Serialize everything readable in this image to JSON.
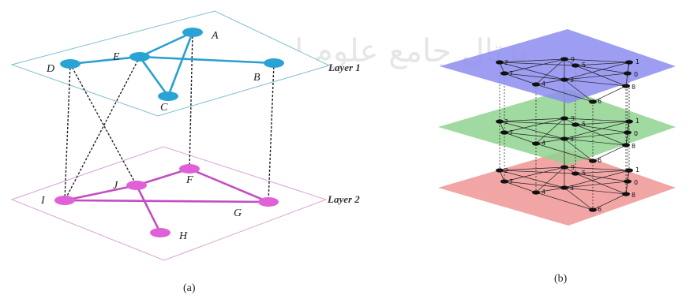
{
  "panel_a": {
    "caption": "(a)",
    "layer1": {
      "label": "Layer 1",
      "plane_color": "#7fbfcf",
      "node_color": "#29a3d6",
      "edge_color": "#2a9fd0",
      "nodes": [
        {
          "id": "A",
          "label": "A"
        },
        {
          "id": "B",
          "label": "B"
        },
        {
          "id": "C",
          "label": "C"
        },
        {
          "id": "D",
          "label": "D"
        },
        {
          "id": "E",
          "label": "E"
        }
      ],
      "edges": [
        [
          "E",
          "A"
        ],
        [
          "E",
          "B"
        ],
        [
          "E",
          "C"
        ],
        [
          "A",
          "C"
        ],
        [
          "D",
          "E"
        ]
      ]
    },
    "layer2": {
      "label": "Layer 2",
      "plane_color": "#d9a3d3",
      "node_color": "#e060d8",
      "edge_color": "#c24fc0",
      "nodes": [
        {
          "id": "F",
          "label": "F"
        },
        {
          "id": "G",
          "label": "G"
        },
        {
          "id": "H",
          "label": "H"
        },
        {
          "id": "I",
          "label": "I"
        },
        {
          "id": "J",
          "label": "J"
        }
      ],
      "edges": [
        [
          "J",
          "F"
        ],
        [
          "J",
          "H"
        ],
        [
          "I",
          "G"
        ],
        [
          "F",
          "G"
        ],
        [
          "I",
          "J"
        ]
      ]
    },
    "interlayer_edges": [
      [
        "D",
        "I"
      ],
      [
        "D",
        "J"
      ],
      [
        "E",
        "I"
      ],
      [
        "A",
        "F"
      ],
      [
        "B",
        "G"
      ]
    ]
  },
  "panel_b": {
    "caption": "(b)",
    "layers": [
      {
        "name": "top",
        "color": "#8c8cf0"
      },
      {
        "name": "middle",
        "color": "#8fd48f"
      },
      {
        "name": "bottom",
        "color": "#f09595"
      }
    ],
    "node_labels": [
      "2",
      "9",
      "5",
      "1",
      "7",
      "3",
      "0",
      "4",
      "8",
      "6"
    ],
    "edge_color": "#222222",
    "node_color": "#111111"
  },
  "watermark_text": "پرتال جامع علوم انسانی"
}
